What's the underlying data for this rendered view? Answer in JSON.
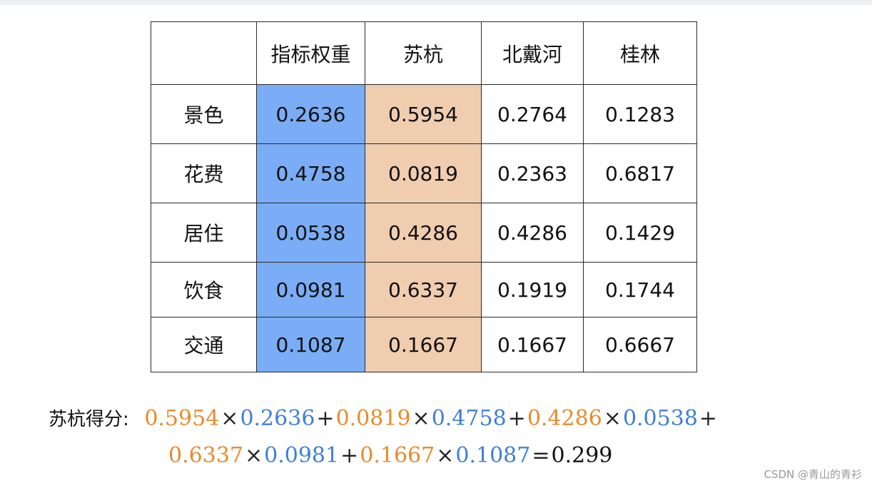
{
  "colors": {
    "weight_col": "#7aadf5",
    "suhang_col": "#f1cdb0",
    "orange": "#e98a2c",
    "blue": "#3f7fd6"
  },
  "table": {
    "headers": [
      "",
      "指标权重",
      "苏杭",
      "北戴河",
      "桂林"
    ],
    "rows": [
      {
        "label": "景色",
        "values": [
          "0.2636",
          "0.5954",
          "0.2764",
          "0.1283"
        ]
      },
      {
        "label": "花费",
        "values": [
          "0.4758",
          "0.0819",
          "0.2363",
          "0.6817"
        ]
      },
      {
        "label": "居住",
        "values": [
          "0.0538",
          "0.4286",
          "0.4286",
          "0.1429"
        ]
      },
      {
        "label": "饮食",
        "values": [
          "0.0981",
          "0.6337",
          "0.1919",
          "0.1744"
        ]
      },
      {
        "label": "交通",
        "values": [
          "0.1087",
          "0.1667",
          "0.1667",
          "0.6667"
        ]
      }
    ]
  },
  "formula": {
    "label": "苏杭得分:",
    "line1": [
      "0.5954",
      "×",
      "0.2636",
      "+",
      "0.0819",
      "×",
      "0.4758",
      "+",
      "0.4286",
      "×",
      "0.0538",
      "+"
    ],
    "line2": [
      "0.6337",
      "×",
      "0.0981",
      "+",
      "0.1667",
      "×",
      "0.1087",
      "=",
      "0.299"
    ]
  },
  "watermark": "CSDN @青山的青衫"
}
